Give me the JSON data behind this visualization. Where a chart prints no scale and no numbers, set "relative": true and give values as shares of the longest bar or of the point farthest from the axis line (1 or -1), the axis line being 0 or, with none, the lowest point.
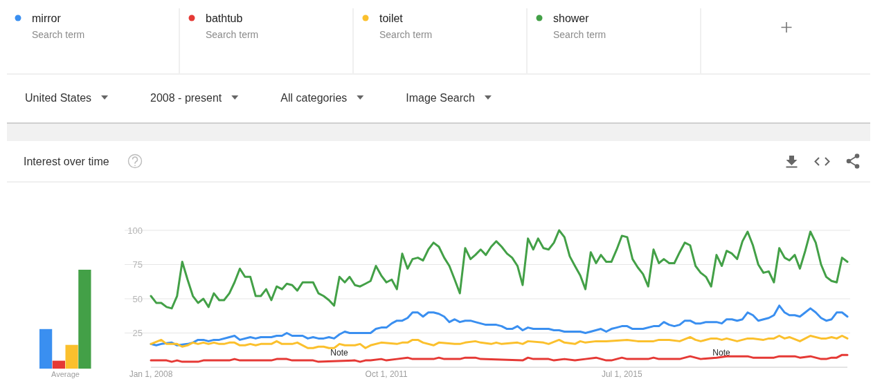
{
  "chart_data": [
    {
      "type": "other",
      "annotations": [
        "Search term",
        "Search term",
        "Search term",
        "Search term",
        "United States",
        "2008 - present",
        "All categories",
        "Image Search"
      ]
    },
    {
      "type": "line",
      "title": "Interest over time",
      "legend": "top",
      "grid": "y",
      "ylim": [
        0,
        100
      ],
      "yticks": [
        25,
        50,
        75,
        100
      ],
      "xlim": [
        "2008-01",
        "2019-02"
      ],
      "xticks": [
        {
          "value": "2008-01-01",
          "label": "Jan 1, 2008"
        },
        {
          "value": "2011-10-01",
          "label": "Oct 1, 2011"
        },
        {
          "value": "2015-07-01",
          "label": "Jul 1, 2015"
        }
      ],
      "annotations": [
        "Note",
        "Note"
      ],
      "x": [
        "2008-01",
        "2008-02",
        "2008-03",
        "2008-04",
        "2008-05",
        "2008-06",
        "2008-07",
        "2008-08",
        "2008-09",
        "2008-10",
        "2008-11",
        "2008-12",
        "2009-01",
        "2009-02",
        "2009-03",
        "2009-04",
        "2009-05",
        "2009-06",
        "2009-07",
        "2009-08",
        "2009-09",
        "2009-10",
        "2009-11",
        "2009-12",
        "2010-01",
        "2010-02",
        "2010-03",
        "2010-04",
        "2010-05",
        "2010-06",
        "2010-07",
        "2010-08",
        "2010-09",
        "2010-10",
        "2010-11",
        "2010-12",
        "2011-01",
        "2011-02",
        "2011-03",
        "2011-04",
        "2011-05",
        "2011-06",
        "2011-07",
        "2011-08",
        "2011-09",
        "2011-10",
        "2011-11",
        "2011-12",
        "2012-01",
        "2012-02",
        "2012-03",
        "2012-04",
        "2012-05",
        "2012-06",
        "2012-07",
        "2012-08",
        "2012-09",
        "2012-10",
        "2012-11",
        "2012-12",
        "2013-01",
        "2013-02",
        "2013-03",
        "2013-04",
        "2013-05",
        "2013-06",
        "2013-07",
        "2013-08",
        "2013-09",
        "2013-10",
        "2013-11",
        "2013-12",
        "2014-01",
        "2014-02",
        "2014-03",
        "2014-04",
        "2014-05",
        "2014-06",
        "2014-07",
        "2014-08",
        "2014-09",
        "2014-10",
        "2014-11",
        "2014-12",
        "2015-01",
        "2015-02",
        "2015-03",
        "2015-04",
        "2015-05",
        "2015-06",
        "2015-07",
        "2015-08",
        "2015-09",
        "2015-10",
        "2015-11",
        "2015-12",
        "2016-01",
        "2016-02",
        "2016-03",
        "2016-04",
        "2016-05",
        "2016-06",
        "2016-07",
        "2016-08",
        "2016-09",
        "2016-10",
        "2016-11",
        "2016-12",
        "2017-01",
        "2017-02",
        "2017-03",
        "2017-04",
        "2017-05",
        "2017-06",
        "2017-07",
        "2017-08",
        "2017-09",
        "2017-10",
        "2017-11",
        "2017-12",
        "2018-01",
        "2018-02",
        "2018-03",
        "2018-04",
        "2018-05",
        "2018-06",
        "2018-07",
        "2018-08",
        "2018-09",
        "2018-10",
        "2018-11",
        "2018-12",
        "2019-01",
        "2019-02"
      ],
      "series": [
        {
          "name": "mirror",
          "color": "#3a8ff0",
          "x": [
            "2008-01",
            "2008-02",
            "2008-03",
            "2008-05",
            "2008-06",
            "2008-08",
            "2008-09",
            "2008-10",
            "2008-11",
            "2008-12",
            "2009-01",
            "2009-02",
            "2009-04",
            "2009-05",
            "2009-06",
            "2009-08",
            "2009-09",
            "2009-10",
            "2009-12",
            "2010-01",
            "2010-02",
            "2010-03",
            "2010-04",
            "2010-06",
            "2010-07",
            "2010-08",
            "2010-09",
            "2010-10",
            "2010-11",
            "2010-12",
            "2011-01",
            "2011-02",
            "2011-03",
            "2011-06",
            "2011-07",
            "2011-08",
            "2011-09",
            "2011-10",
            "2011-11",
            "2011-12",
            "2012-01",
            "2012-02",
            "2012-03",
            "2012-04",
            "2012-05",
            "2012-06",
            "2012-07",
            "2012-08",
            "2012-09",
            "2012-10",
            "2012-11",
            "2012-12",
            "2013-01",
            "2013-02",
            "2013-03",
            "2013-05",
            "2013-07",
            "2013-08",
            "2013-09",
            "2013-10",
            "2013-11",
            "2013-12",
            "2014-01",
            "2014-02",
            "2014-05",
            "2014-06",
            "2014-07",
            "2014-08",
            "2014-11",
            "2014-12",
            "2015-01",
            "2015-03",
            "2015-04",
            "2015-05",
            "2015-06",
            "2015-07",
            "2015-08",
            "2015-09",
            "2015-11",
            "2016-01",
            "2016-02",
            "2016-03",
            "2016-04",
            "2016-05",
            "2016-06",
            "2016-07",
            "2016-08",
            "2016-09",
            "2016-10",
            "2016-11",
            "2017-01",
            "2017-02",
            "2017-03",
            "2017-04",
            "2017-05",
            "2017-06",
            "2017-07",
            "2017-08",
            "2017-09",
            "2017-10",
            "2017-11",
            "2017-12",
            "2018-01",
            "2018-02",
            "2018-03",
            "2018-04",
            "2018-05",
            "2018-06",
            "2018-07",
            "2018-08",
            "2018-09",
            "2018-10",
            "2018-11",
            "2018-12",
            "2019-01",
            "2019-02"
          ],
          "values": [
            17,
            16,
            17,
            18,
            16,
            17,
            18,
            20,
            20,
            19,
            20,
            20,
            22,
            23,
            20,
            22,
            21,
            22,
            22,
            23,
            23,
            25,
            23,
            23,
            21,
            22,
            21,
            21,
            22,
            21,
            24,
            26,
            25,
            25,
            25,
            28,
            29,
            29,
            32,
            34,
            34,
            36,
            40,
            40,
            37,
            40,
            40,
            39,
            37,
            33,
            35,
            33,
            34,
            34,
            33,
            31,
            31,
            30,
            28,
            28,
            30,
            27,
            29,
            28,
            28,
            27,
            27,
            26,
            26,
            25,
            26,
            28,
            26,
            28,
            29,
            30,
            30,
            28,
            28,
            30,
            30,
            33,
            31,
            30,
            31,
            34,
            34,
            32,
            32,
            33,
            33,
            32,
            35,
            35,
            34,
            35,
            40,
            38,
            34,
            35,
            36,
            38,
            45,
            40,
            38,
            38,
            37,
            40,
            43,
            40,
            36,
            34,
            35,
            40,
            40,
            37
          ]
        },
        {
          "name": "bathtub",
          "color": "#e53935",
          "x": [
            "2008-01",
            "2008-04",
            "2008-05",
            "2008-06",
            "2008-07",
            "2008-10",
            "2008-11",
            "2009-04",
            "2009-05",
            "2009-06",
            "2009-12",
            "2010-01",
            "2010-03",
            "2010-04",
            "2010-08",
            "2010-09",
            "2011-04",
            "2011-05",
            "2011-06",
            "2011-07",
            "2011-09",
            "2011-10",
            "2011-12",
            "2012-02",
            "2012-03",
            "2012-07",
            "2012-08",
            "2012-09",
            "2012-12",
            "2013-01",
            "2013-03",
            "2013-04",
            "2013-12",
            "2014-01",
            "2014-02",
            "2014-05",
            "2014-06",
            "2014-08",
            "2014-10",
            "2014-12",
            "2015-02",
            "2015-04",
            "2015-05",
            "2015-07",
            "2015-08",
            "2015-12",
            "2016-01",
            "2016-02",
            "2016-06",
            "2016-08",
            "2016-10",
            "2017-01",
            "2017-03",
            "2017-07",
            "2017-08",
            "2017-12",
            "2018-01",
            "2018-04",
            "2018-05",
            "2018-07",
            "2018-09",
            "2018-10",
            "2018-11",
            "2018-12",
            "2019-01",
            "2019-02"
          ],
          "values": [
            5,
            5,
            4,
            5,
            4,
            4,
            5,
            5,
            6,
            5,
            5,
            6,
            6,
            5,
            5,
            4,
            5,
            4,
            5,
            5,
            6,
            5,
            6,
            7,
            6,
            6,
            7,
            6,
            6,
            7,
            7,
            6,
            5,
            7,
            6,
            6,
            5,
            6,
            5,
            6,
            7,
            5,
            5,
            7,
            6,
            6,
            7,
            6,
            6,
            8,
            6,
            7,
            8,
            8,
            7,
            7,
            8,
            8,
            7,
            8,
            6,
            6,
            7,
            7,
            9,
            9
          ]
        },
        {
          "name": "toilet",
          "color": "#fbc02d",
          "x": [
            "2008-01",
            "2008-03",
            "2008-04",
            "2008-06",
            "2008-07",
            "2008-08",
            "2008-09",
            "2008-10",
            "2008-11",
            "2008-12",
            "2009-01",
            "2009-02",
            "2009-03",
            "2009-04",
            "2009-05",
            "2009-06",
            "2009-07",
            "2009-08",
            "2009-09",
            "2009-10",
            "2009-12",
            "2010-01",
            "2010-02",
            "2010-04",
            "2010-05",
            "2010-06",
            "2010-07",
            "2010-08",
            "2010-09",
            "2010-10",
            "2010-11",
            "2010-12",
            "2011-01",
            "2011-02",
            "2011-04",
            "2011-05",
            "2011-06",
            "2011-07",
            "2011-09",
            "2011-12",
            "2012-01",
            "2012-02",
            "2012-03",
            "2012-04",
            "2012-05",
            "2012-07",
            "2012-08",
            "2012-11",
            "2012-12",
            "2013-01",
            "2013-03",
            "2013-04",
            "2013-06",
            "2013-07",
            "2013-08",
            "2013-11",
            "2013-12",
            "2014-01",
            "2014-04",
            "2014-05",
            "2014-07",
            "2014-08",
            "2014-10",
            "2014-11",
            "2014-12",
            "2015-02",
            "2015-04",
            "2015-08",
            "2015-10",
            "2016-01",
            "2016-02",
            "2016-04",
            "2016-06",
            "2016-08",
            "2016-09",
            "2016-10",
            "2016-12",
            "2017-01",
            "2017-02",
            "2017-03",
            "2017-05",
            "2017-07",
            "2017-08",
            "2017-10",
            "2017-11",
            "2017-12",
            "2018-01",
            "2018-02",
            "2018-03",
            "2018-05",
            "2018-06",
            "2018-07",
            "2018-09",
            "2018-10",
            "2018-11",
            "2018-12",
            "2019-01",
            "2019-02"
          ],
          "values": [
            17,
            20,
            17,
            17,
            15,
            16,
            18,
            17,
            18,
            17,
            18,
            17,
            17,
            18,
            18,
            16,
            16,
            17,
            16,
            17,
            17,
            19,
            17,
            17,
            18,
            16,
            14,
            14,
            15,
            15,
            14,
            14,
            17,
            16,
            16,
            17,
            14,
            16,
            18,
            17,
            18,
            18,
            20,
            20,
            18,
            16,
            18,
            17,
            17,
            18,
            19,
            18,
            17,
            18,
            17,
            18,
            17,
            19,
            18,
            17,
            20,
            18,
            17,
            19,
            18,
            19,
            19,
            20,
            19,
            19,
            20,
            20,
            19,
            22,
            20,
            19,
            21,
            21,
            20,
            21,
            19,
            21,
            21,
            20,
            21,
            21,
            23,
            21,
            22,
            19,
            21,
            23,
            21,
            21,
            22,
            21,
            23,
            21
          ]
        },
        {
          "name": "shower",
          "color": "#43a047",
          "values": [
            52,
            47,
            47,
            44,
            43,
            52,
            77,
            64,
            52,
            47,
            50,
            44,
            54,
            49,
            49,
            54,
            62,
            72,
            66,
            66,
            52,
            52,
            57,
            49,
            59,
            57,
            61,
            60,
            56,
            62,
            62,
            62,
            54,
            52,
            49,
            45,
            66,
            62,
            66,
            60,
            59,
            61,
            63,
            74,
            67,
            62,
            64,
            57,
            83,
            72,
            79,
            80,
            78,
            86,
            91,
            88,
            80,
            74,
            64,
            54,
            87,
            79,
            82,
            86,
            82,
            88,
            92,
            88,
            83,
            80,
            74,
            60,
            94,
            86,
            94,
            87,
            86,
            91,
            100,
            95,
            81,
            74,
            67,
            57,
            84,
            76,
            82,
            77,
            77,
            86,
            96,
            95,
            79,
            73,
            68,
            59,
            86,
            76,
            79,
            76,
            76,
            84,
            91,
            89,
            74,
            69,
            66,
            59,
            82,
            74,
            85,
            83,
            79,
            92,
            99,
            89,
            75,
            69,
            70,
            62,
            87,
            80,
            78,
            82,
            72,
            85,
            99,
            91,
            75,
            66,
            63,
            62,
            80,
            77
          ]
        }
      ]
    },
    {
      "type": "bar",
      "relative": true,
      "xlabel": "Average",
      "categories": [
        null,
        null,
        null,
        null
      ],
      "values": [
        0.4,
        0.08,
        0.24,
        1
      ],
      "colors": [
        "#3a8ff0",
        "#e53935",
        "#fbc02d",
        "#43a047"
      ]
    }
  ]
}
